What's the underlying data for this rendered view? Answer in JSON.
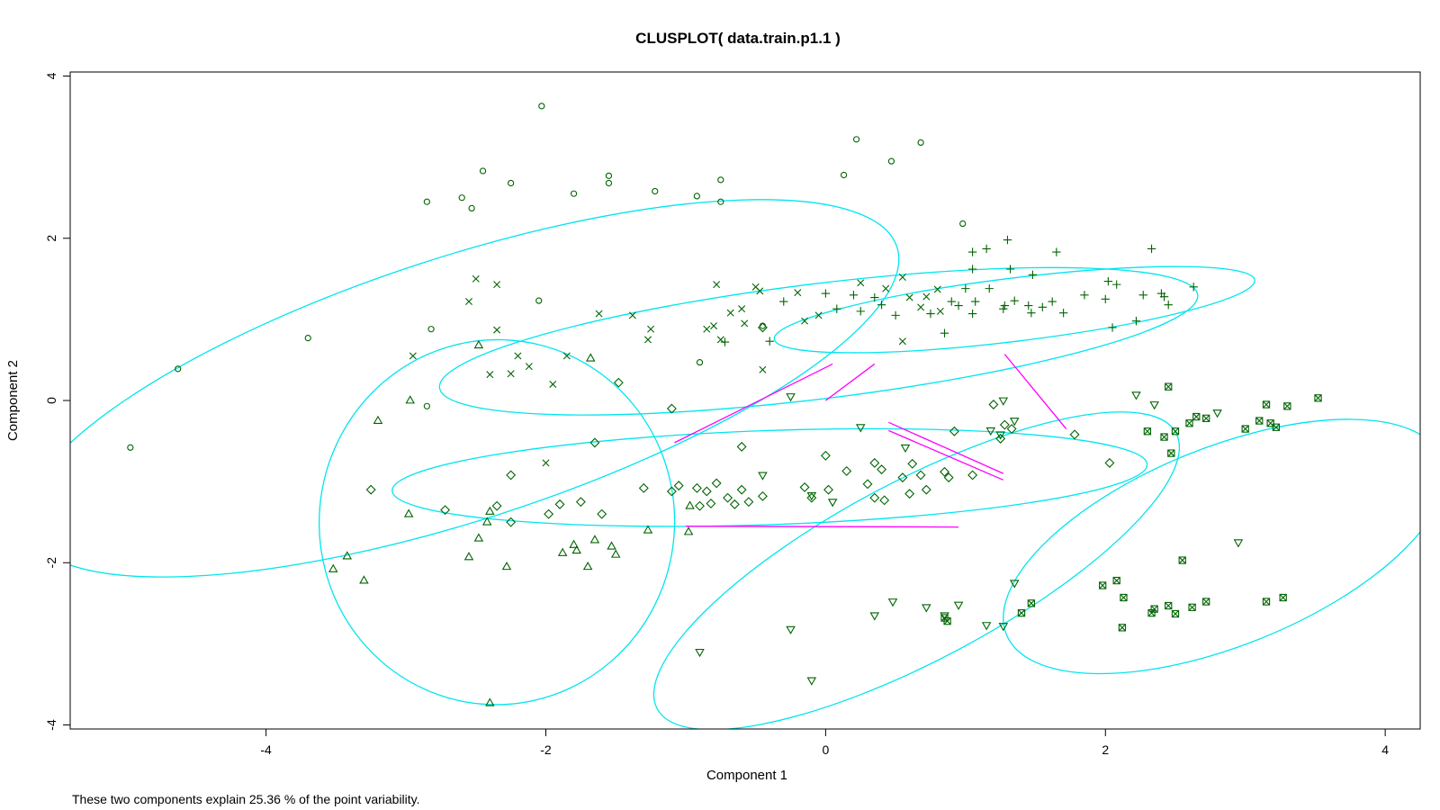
{
  "chart_data": {
    "type": "scatter",
    "title": "CLUSPLOT( data.train.p1.1 )",
    "xlabel": "Component 1",
    "ylabel": "Component 2",
    "footnote": "These two components explain 25.36 % of the point variability.",
    "xlim": [
      -5.4,
      4.25
    ],
    "ylim": [
      -4.05,
      4.05
    ],
    "xticks": [
      -4,
      -2,
      0,
      2,
      4
    ],
    "yticks": [
      -4,
      -2,
      0,
      2,
      4
    ],
    "grid": false,
    "legend": "none",
    "colors": {
      "points": "#006400",
      "ellipses": "#00e5ee",
      "links": "#ff00ff",
      "frame": "#000000"
    },
    "ellipses": [
      {
        "cluster": 1,
        "cx": -2.6,
        "cy": 0.15,
        "rx": 3.27,
        "ry": 1.62,
        "angle_deg": 18
      },
      {
        "cluster": 2,
        "cx": -0.05,
        "cy": 0.73,
        "rx": 2.73,
        "ry": 0.71,
        "angle_deg": 7
      },
      {
        "cluster": 3,
        "cx": 1.35,
        "cy": 1.12,
        "rx": 1.73,
        "ry": 0.39,
        "angle_deg": 7
      },
      {
        "cluster": 4,
        "cx": -2.35,
        "cy": -1.5,
        "rx": 1.27,
        "ry": 2.25,
        "angle_deg": -5
      },
      {
        "cluster": 5,
        "cx": -0.4,
        "cy": -0.95,
        "rx": 2.7,
        "ry": 0.58,
        "angle_deg": 2
      },
      {
        "cluster": 6,
        "cx": 0.65,
        "cy": -2.1,
        "rx": 2.1,
        "ry": 1.1,
        "angle_deg": 28
      },
      {
        "cluster": 7,
        "cx": 2.85,
        "cy": -1.8,
        "rx": 1.68,
        "ry": 1.22,
        "angle_deg": 22
      }
    ],
    "links": [
      {
        "from": [
          -1.08,
          -0.52
        ],
        "to": [
          0.05,
          0.45
        ]
      },
      {
        "from": [
          0.0,
          0.0
        ],
        "to": [
          0.35,
          0.45
        ]
      },
      {
        "from": [
          1.28,
          0.57
        ],
        "to": [
          1.72,
          -0.35
        ]
      },
      {
        "from": [
          0.45,
          -0.27
        ],
        "to": [
          1.27,
          -0.9
        ]
      },
      {
        "from": [
          0.45,
          -0.37
        ],
        "to": [
          1.27,
          -0.98
        ]
      },
      {
        "from": [
          -1.0,
          -1.55
        ],
        "to": [
          0.95,
          -1.56
        ]
      }
    ],
    "series": [
      {
        "symbol": "circle",
        "points": [
          [
            -2.03,
            3.63
          ],
          [
            0.22,
            3.22
          ],
          [
            0.68,
            3.18
          ],
          [
            -2.45,
            2.83
          ],
          [
            -1.55,
            2.77
          ],
          [
            -1.55,
            2.68
          ],
          [
            -2.25,
            2.68
          ],
          [
            -0.75,
            2.72
          ],
          [
            0.47,
            2.95
          ],
          [
            0.13,
            2.78
          ],
          [
            -2.85,
            2.45
          ],
          [
            -2.6,
            2.5
          ],
          [
            -2.53,
            2.37
          ],
          [
            -1.8,
            2.55
          ],
          [
            -1.22,
            2.58
          ],
          [
            -0.92,
            2.52
          ],
          [
            -0.75,
            2.45
          ],
          [
            0.98,
            2.18
          ],
          [
            -2.05,
            1.23
          ],
          [
            -2.82,
            0.88
          ],
          [
            -3.7,
            0.77
          ],
          [
            -4.63,
            0.39
          ],
          [
            -0.9,
            0.47
          ],
          [
            -0.45,
            0.92
          ],
          [
            -2.85,
            -0.07
          ],
          [
            -4.97,
            -0.58
          ]
        ]
      },
      {
        "symbol": "x",
        "points": [
          [
            -2.5,
            1.5
          ],
          [
            -2.35,
            1.43
          ],
          [
            -2.55,
            1.22
          ],
          [
            -2.35,
            0.87
          ],
          [
            -2.95,
            0.55
          ],
          [
            -2.2,
            0.55
          ],
          [
            -2.25,
            0.33
          ],
          [
            -2.12,
            0.42
          ],
          [
            -2.4,
            0.32
          ],
          [
            -1.85,
            0.55
          ],
          [
            -1.95,
            0.2
          ],
          [
            -1.62,
            1.07
          ],
          [
            -1.38,
            1.05
          ],
          [
            -1.25,
            0.88
          ],
          [
            -1.27,
            0.75
          ],
          [
            -0.78,
            1.43
          ],
          [
            -0.68,
            1.08
          ],
          [
            -0.85,
            0.88
          ],
          [
            -0.6,
            1.13
          ],
          [
            -0.5,
            1.4
          ],
          [
            -0.47,
            1.35
          ],
          [
            -0.8,
            0.92
          ],
          [
            -0.58,
            0.95
          ],
          [
            -0.75,
            0.75
          ],
          [
            -0.45,
            0.38
          ],
          [
            -0.2,
            1.33
          ],
          [
            -0.15,
            0.98
          ],
          [
            -0.05,
            1.05
          ],
          [
            0.25,
            1.45
          ],
          [
            0.43,
            1.38
          ],
          [
            0.55,
            1.52
          ],
          [
            0.6,
            1.27
          ],
          [
            0.72,
            1.28
          ],
          [
            0.8,
            1.37
          ],
          [
            0.68,
            1.15
          ],
          [
            0.82,
            1.1
          ],
          [
            0.55,
            0.73
          ],
          [
            -2.0,
            -0.77
          ]
        ]
      },
      {
        "symbol": "plus",
        "points": [
          [
            1.3,
            1.98
          ],
          [
            1.05,
            1.83
          ],
          [
            1.15,
            1.87
          ],
          [
            1.65,
            1.83
          ],
          [
            2.33,
            1.87
          ],
          [
            1.05,
            1.62
          ],
          [
            1.32,
            1.62
          ],
          [
            1.48,
            1.55
          ],
          [
            1.0,
            1.38
          ],
          [
            1.17,
            1.38
          ],
          [
            1.85,
            1.3
          ],
          [
            2.02,
            1.47
          ],
          [
            2.08,
            1.43
          ],
          [
            2.27,
            1.3
          ],
          [
            2.4,
            1.32
          ],
          [
            2.42,
            1.28
          ],
          [
            2.63,
            1.4
          ],
          [
            0.0,
            1.32
          ],
          [
            0.2,
            1.3
          ],
          [
            0.35,
            1.27
          ],
          [
            0.4,
            1.18
          ],
          [
            0.9,
            1.22
          ],
          [
            0.95,
            1.17
          ],
          [
            1.07,
            1.22
          ],
          [
            1.27,
            1.13
          ],
          [
            1.35,
            1.23
          ],
          [
            1.45,
            1.17
          ],
          [
            1.55,
            1.15
          ],
          [
            1.62,
            1.22
          ],
          [
            1.7,
            1.08
          ],
          [
            2.0,
            1.25
          ],
          [
            2.45,
            1.18
          ],
          [
            -0.3,
            1.22
          ],
          [
            -0.4,
            0.73
          ],
          [
            -0.72,
            0.72
          ],
          [
            0.08,
            1.13
          ],
          [
            0.25,
            1.1
          ],
          [
            0.5,
            1.05
          ],
          [
            0.75,
            1.07
          ],
          [
            0.85,
            0.83
          ],
          [
            1.28,
            1.17
          ],
          [
            1.05,
            1.07
          ],
          [
            2.05,
            0.9
          ],
          [
            2.22,
            0.98
          ],
          [
            1.47,
            1.08
          ]
        ]
      },
      {
        "symbol": "triangle",
        "points": [
          [
            -2.48,
            0.68
          ],
          [
            -1.68,
            0.52
          ],
          [
            -2.97,
            0.0
          ],
          [
            -3.2,
            -0.25
          ],
          [
            -2.98,
            -1.4
          ],
          [
            -2.4,
            -1.37
          ],
          [
            -2.42,
            -1.5
          ],
          [
            -2.48,
            -1.7
          ],
          [
            -2.55,
            -1.93
          ],
          [
            -3.42,
            -1.92
          ],
          [
            -3.52,
            -2.08
          ],
          [
            -3.3,
            -2.22
          ],
          [
            -2.28,
            -2.05
          ],
          [
            -1.88,
            -1.88
          ],
          [
            -1.8,
            -1.78
          ],
          [
            -1.78,
            -1.85
          ],
          [
            -1.65,
            -1.72
          ],
          [
            -1.53,
            -1.8
          ],
          [
            -1.5,
            -1.9
          ],
          [
            -1.7,
            -2.05
          ],
          [
            -1.27,
            -1.6
          ],
          [
            -0.98,
            -1.62
          ],
          [
            -0.97,
            -1.3
          ],
          [
            -2.4,
            -3.73
          ]
        ]
      },
      {
        "symbol": "diamond",
        "points": [
          [
            -1.1,
            -0.1
          ],
          [
            -1.65,
            -0.52
          ],
          [
            -1.48,
            0.22
          ],
          [
            -0.6,
            -0.57
          ],
          [
            -3.25,
            -1.1
          ],
          [
            -2.72,
            -1.35
          ],
          [
            -2.35,
            -1.3
          ],
          [
            -2.25,
            -1.5
          ],
          [
            -1.98,
            -1.4
          ],
          [
            -1.9,
            -1.28
          ],
          [
            -1.75,
            -1.25
          ],
          [
            -1.6,
            -1.4
          ],
          [
            -1.3,
            -1.08
          ],
          [
            -1.05,
            -1.05
          ],
          [
            -1.1,
            -1.12
          ],
          [
            -0.92,
            -1.08
          ],
          [
            -0.85,
            -1.12
          ],
          [
            -0.78,
            -1.02
          ],
          [
            -0.7,
            -1.2
          ],
          [
            -0.6,
            -1.1
          ],
          [
            -0.55,
            -1.25
          ],
          [
            -0.65,
            -1.28
          ],
          [
            -0.82,
            -1.27
          ],
          [
            -0.9,
            -1.3
          ],
          [
            -0.45,
            -1.18
          ],
          [
            -0.15,
            -1.07
          ],
          [
            0.0,
            -0.68
          ],
          [
            0.15,
            -0.87
          ],
          [
            0.3,
            -1.03
          ],
          [
            0.35,
            -0.77
          ],
          [
            0.4,
            -0.85
          ],
          [
            0.35,
            -1.2
          ],
          [
            0.42,
            -1.23
          ],
          [
            0.55,
            -0.95
          ],
          [
            0.62,
            -0.78
          ],
          [
            0.68,
            -0.92
          ],
          [
            0.72,
            -1.1
          ],
          [
            0.85,
            -0.88
          ],
          [
            0.88,
            -0.95
          ],
          [
            0.92,
            -0.38
          ],
          [
            1.05,
            -0.92
          ],
          [
            1.25,
            -0.47
          ],
          [
            1.33,
            -0.35
          ],
          [
            1.28,
            -0.3
          ],
          [
            1.78,
            -0.42
          ],
          [
            2.03,
            -0.77
          ],
          [
            1.2,
            -0.05
          ],
          [
            0.6,
            -1.15
          ],
          [
            -0.45,
            0.9
          ],
          [
            -2.25,
            -0.92
          ],
          [
            0.02,
            -1.1
          ],
          [
            -0.1,
            -1.2
          ]
        ]
      },
      {
        "symbol": "triangle-down",
        "points": [
          [
            -0.45,
            -0.92
          ],
          [
            -0.25,
            0.05
          ],
          [
            0.05,
            -1.25
          ],
          [
            -0.1,
            -1.17
          ],
          [
            0.25,
            -0.33
          ],
          [
            1.18,
            -0.37
          ],
          [
            1.25,
            -0.42
          ],
          [
            1.27,
            0.0
          ],
          [
            1.35,
            -0.25
          ],
          [
            2.22,
            0.07
          ],
          [
            2.35,
            -0.05
          ],
          [
            0.57,
            -0.58
          ],
          [
            0.85,
            -2.65
          ],
          [
            0.95,
            -2.52
          ],
          [
            0.72,
            -2.55
          ],
          [
            0.48,
            -2.48
          ],
          [
            0.35,
            -2.65
          ],
          [
            -0.25,
            -2.82
          ],
          [
            -0.9,
            -3.1
          ],
          [
            -0.1,
            -3.45
          ],
          [
            1.15,
            -2.77
          ],
          [
            1.27,
            -2.78
          ],
          [
            1.35,
            -2.25
          ],
          [
            2.8,
            -0.15
          ],
          [
            2.95,
            -1.75
          ]
        ]
      },
      {
        "symbol": "boxed-x",
        "points": [
          [
            2.45,
            0.17
          ],
          [
            3.52,
            0.03
          ],
          [
            3.15,
            -0.05
          ],
          [
            3.3,
            -0.07
          ],
          [
            2.3,
            -0.38
          ],
          [
            2.42,
            -0.45
          ],
          [
            2.5,
            -0.38
          ],
          [
            2.6,
            -0.28
          ],
          [
            2.65,
            -0.2
          ],
          [
            2.72,
            -0.22
          ],
          [
            3.0,
            -0.35
          ],
          [
            3.1,
            -0.25
          ],
          [
            3.18,
            -0.28
          ],
          [
            3.22,
            -0.33
          ],
          [
            2.47,
            -0.65
          ],
          [
            2.55,
            -1.97
          ],
          [
            1.98,
            -2.28
          ],
          [
            2.08,
            -2.22
          ],
          [
            2.13,
            -2.43
          ],
          [
            2.33,
            -2.62
          ],
          [
            2.35,
            -2.57
          ],
          [
            2.45,
            -2.53
          ],
          [
            2.5,
            -2.63
          ],
          [
            2.62,
            -2.55
          ],
          [
            2.72,
            -2.48
          ],
          [
            3.15,
            -2.48
          ],
          [
            3.27,
            -2.43
          ],
          [
            1.4,
            -2.62
          ],
          [
            1.47,
            -2.5
          ],
          [
            2.12,
            -2.8
          ],
          [
            0.85,
            -2.68
          ],
          [
            0.87,
            -2.72
          ]
        ]
      }
    ]
  }
}
